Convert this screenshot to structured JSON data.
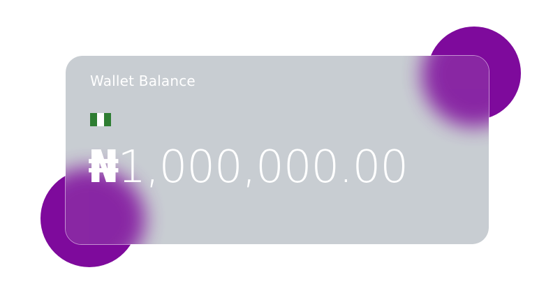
{
  "card": {
    "title": "Wallet Balance",
    "currency_symbol": "₦",
    "amount": "1,000,000.00",
    "flag_icon": "nigeria-flag-icon"
  },
  "colors": {
    "accent_purple": "#7E0A9C",
    "card_gray": "#C8CDD2",
    "card_text": "#FFFFFF",
    "flag_green": "#2E7D32",
    "flag_white": "#FFFFFF"
  }
}
